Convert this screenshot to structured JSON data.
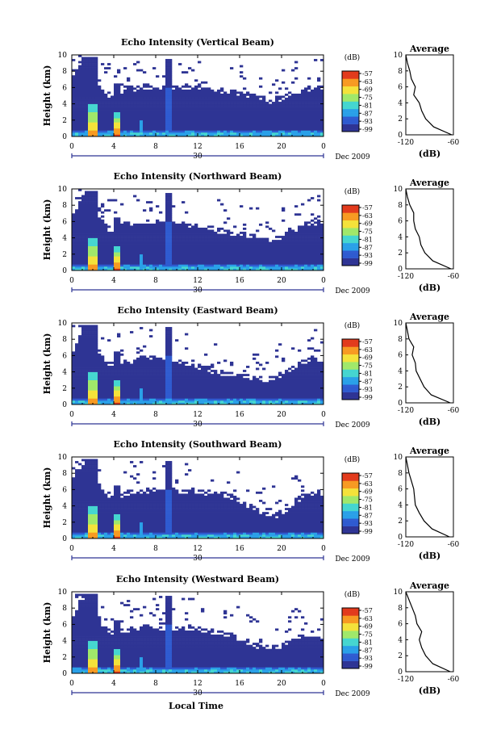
{
  "shared": {
    "x_ticks": [
      "0",
      "4",
      "8",
      "12",
      "16",
      "20",
      "0"
    ],
    "y_ticks": [
      "0",
      "2",
      "4",
      "6",
      "8",
      "10"
    ],
    "ylabel": "Height (km)",
    "day_label": "30",
    "date_label": "Dec 2009",
    "xlabel": "Local Time",
    "colorbar_unit": "(dB)",
    "colorbar_ticks": [
      "-57",
      "-63",
      "-69",
      "-75",
      "-81",
      "-87",
      "-93",
      "-99"
    ],
    "avg_title": "Average",
    "avg_xticks": [
      "-120",
      "-60"
    ],
    "avg_xlabel": "(dB)",
    "avg_yticks": [
      "0",
      "2",
      "4",
      "6",
      "8",
      "10"
    ]
  },
  "colors": {
    "background_echo": "#2e3494",
    "colormap": [
      "#2e3494",
      "#2f5bd0",
      "#2aa0e8",
      "#45d6d0",
      "#a0e86a",
      "#f4e23a",
      "#f79a22",
      "#e23a1c"
    ]
  },
  "chart_data": [
    {
      "type": "heatmap",
      "title": "Echo Intensity (Vertical Beam)",
      "xlim": [
        0,
        24
      ],
      "ylim": [
        0,
        10
      ],
      "zlim": [
        -99,
        -57
      ],
      "cloud_top_km": [
        7.0,
        9.8,
        8.0,
        6.2,
        4.8,
        6.3,
        6.2,
        6.4,
        6.3,
        6.2,
        6.3,
        6.4,
        6.2,
        6.0,
        5.9,
        5.8,
        5.7,
        5.4,
        5.0,
        4.7,
        5.0,
        5.5,
        6.0,
        6.3,
        6.4
      ],
      "average_profile": {
        "height_km": [
          0,
          1,
          2,
          3,
          4,
          5,
          6,
          7,
          8,
          9,
          10
        ],
        "value_db": [
          -62,
          -85,
          -95,
          -100,
          -103,
          -110,
          -108,
          -113,
          -115,
          -118,
          -120
        ]
      }
    },
    {
      "type": "heatmap",
      "title": "Echo Intensity (Northward Beam)",
      "xlim": [
        0,
        24
      ],
      "ylim": [
        0,
        10
      ],
      "zlim": [
        -99,
        -57
      ],
      "cloud_top_km": [
        6.5,
        9.8,
        8.0,
        6.0,
        5.0,
        6.0,
        6.0,
        6.2,
        6.3,
        6.0,
        6.0,
        6.0,
        5.8,
        5.5,
        5.2,
        5.0,
        4.8,
        4.6,
        4.2,
        4.0,
        4.5,
        5.2,
        5.8,
        6.2,
        6.3
      ],
      "average_profile": {
        "height_km": [
          0,
          1,
          2,
          3,
          4,
          5,
          6,
          7,
          8,
          9,
          10
        ],
        "value_db": [
          -63,
          -86,
          -96,
          -101,
          -103,
          -108,
          -110,
          -110,
          -115,
          -118,
          -120
        ]
      }
    },
    {
      "type": "heatmap",
      "title": "Echo Intensity (Eastward Beam)",
      "xlim": [
        0,
        24
      ],
      "ylim": [
        0,
        10
      ],
      "zlim": [
        -99,
        -57
      ],
      "cloud_top_km": [
        6.0,
        9.8,
        8.0,
        6.0,
        5.0,
        5.5,
        5.8,
        6.0,
        6.2,
        6.0,
        5.6,
        5.3,
        5.0,
        4.6,
        4.2,
        4.0,
        3.8,
        3.6,
        3.5,
        3.4,
        4.0,
        4.8,
        5.5,
        5.8,
        6.0
      ],
      "average_profile": {
        "height_km": [
          0,
          1,
          2,
          3,
          4,
          5,
          6,
          7,
          8,
          9,
          10
        ],
        "value_db": [
          -64,
          -88,
          -97,
          -102,
          -107,
          -108,
          -112,
          -110,
          -116,
          -118,
          -120
        ]
      }
    },
    {
      "type": "heatmap",
      "title": "Echo Intensity (Southward Beam)",
      "xlim": [
        0,
        24
      ],
      "ylim": [
        0,
        10
      ],
      "zlim": [
        -99,
        -57
      ],
      "cloud_top_km": [
        7.2,
        9.8,
        8.5,
        6.2,
        5.2,
        5.8,
        6.0,
        6.2,
        6.3,
        6.2,
        6.0,
        6.0,
        6.0,
        5.9,
        5.8,
        5.6,
        5.0,
        4.2,
        3.5,
        3.0,
        3.4,
        4.5,
        5.5,
        5.8,
        6.0
      ],
      "average_profile": {
        "height_km": [
          0,
          1,
          2,
          3,
          4,
          5,
          6,
          7,
          8,
          9,
          10
        ],
        "value_db": [
          -65,
          -87,
          -97,
          -103,
          -108,
          -109,
          -110,
          -113,
          -116,
          -118,
          -120
        ]
      }
    },
    {
      "type": "heatmap",
      "title": "Echo Intensity (Westward Beam)",
      "xlim": [
        0,
        24
      ],
      "ylim": [
        0,
        10
      ],
      "zlim": [
        -99,
        -57
      ],
      "cloud_top_km": [
        6.8,
        9.8,
        8.5,
        6.0,
        5.0,
        5.5,
        5.8,
        6.0,
        6.0,
        5.8,
        5.8,
        5.9,
        5.8,
        5.5,
        5.2,
        5.0,
        4.6,
        4.0,
        3.6,
        3.4,
        3.6,
        4.2,
        5.0,
        5.0,
        4.5
      ],
      "average_profile": {
        "height_km": [
          0,
          1,
          2,
          3,
          4,
          5,
          6,
          7,
          8,
          9,
          10
        ],
        "value_db": [
          -64,
          -86,
          -95,
          -100,
          -103,
          -100,
          -106,
          -108,
          -112,
          -116,
          -120
        ]
      }
    }
  ]
}
